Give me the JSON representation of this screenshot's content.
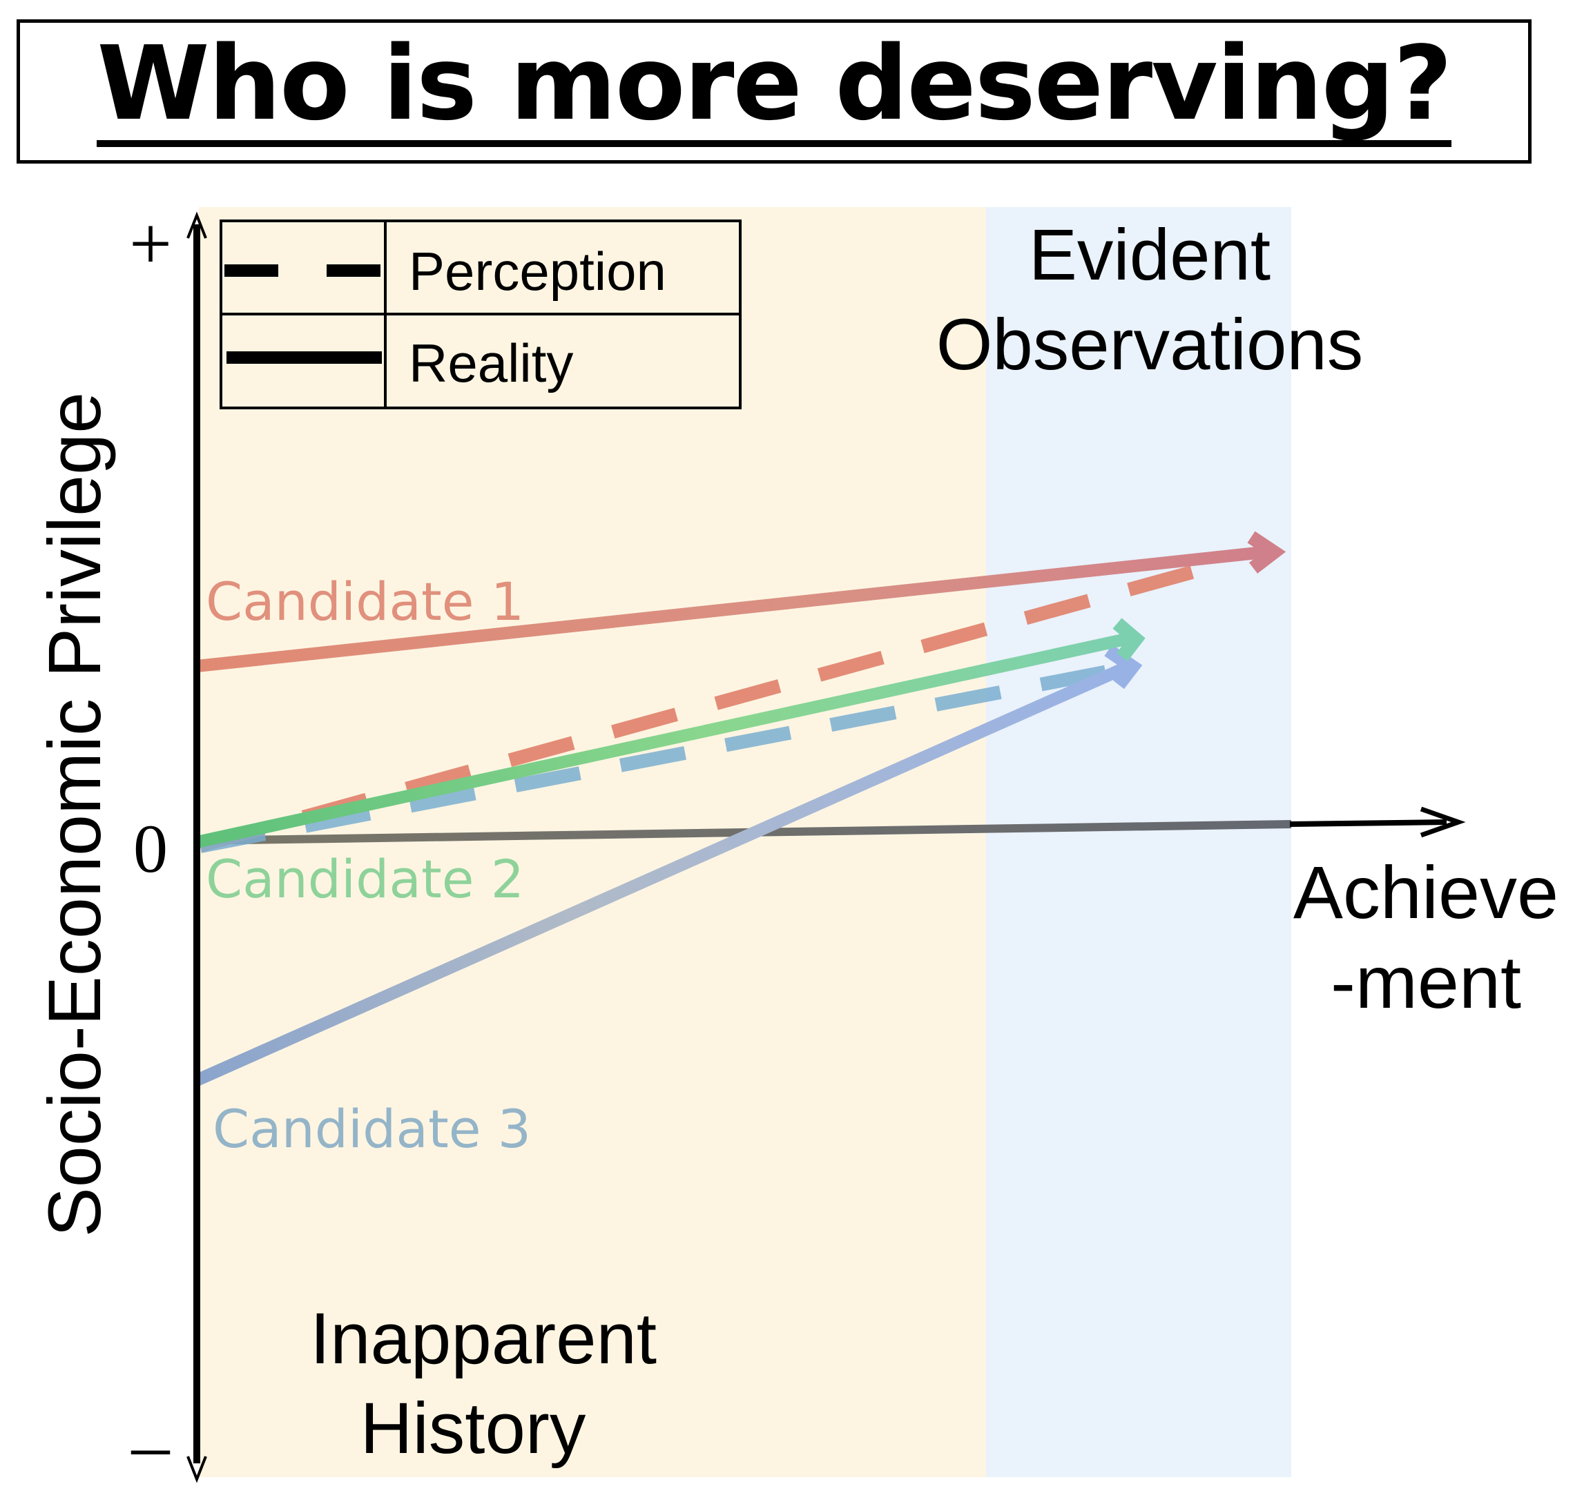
{
  "title": "Who is more deserving?",
  "axes": {
    "y_label": "Socio-Economic Privilege",
    "x_label_line1": "Achieve",
    "x_label_line2": "-ment",
    "y_top_tick": "+",
    "y_zero_tick": "0",
    "y_bottom_tick": "–"
  },
  "regions": {
    "history_line1": "Inapparent",
    "history_line2": "History",
    "evident_line1": "Evident",
    "evident_line2": "Observations",
    "history_color": "#fdf5e2",
    "evident_color": "#eaf2fb"
  },
  "legend": {
    "perception_label": "Perception",
    "reality_label": "Reality"
  },
  "candidates": [
    {
      "label": "Candidate 1",
      "color": "#e0907c"
    },
    {
      "label": "Candidate 2",
      "color": "#8ed29a"
    },
    {
      "label": "Candidate 3",
      "color": "#94b4c8"
    }
  ]
}
